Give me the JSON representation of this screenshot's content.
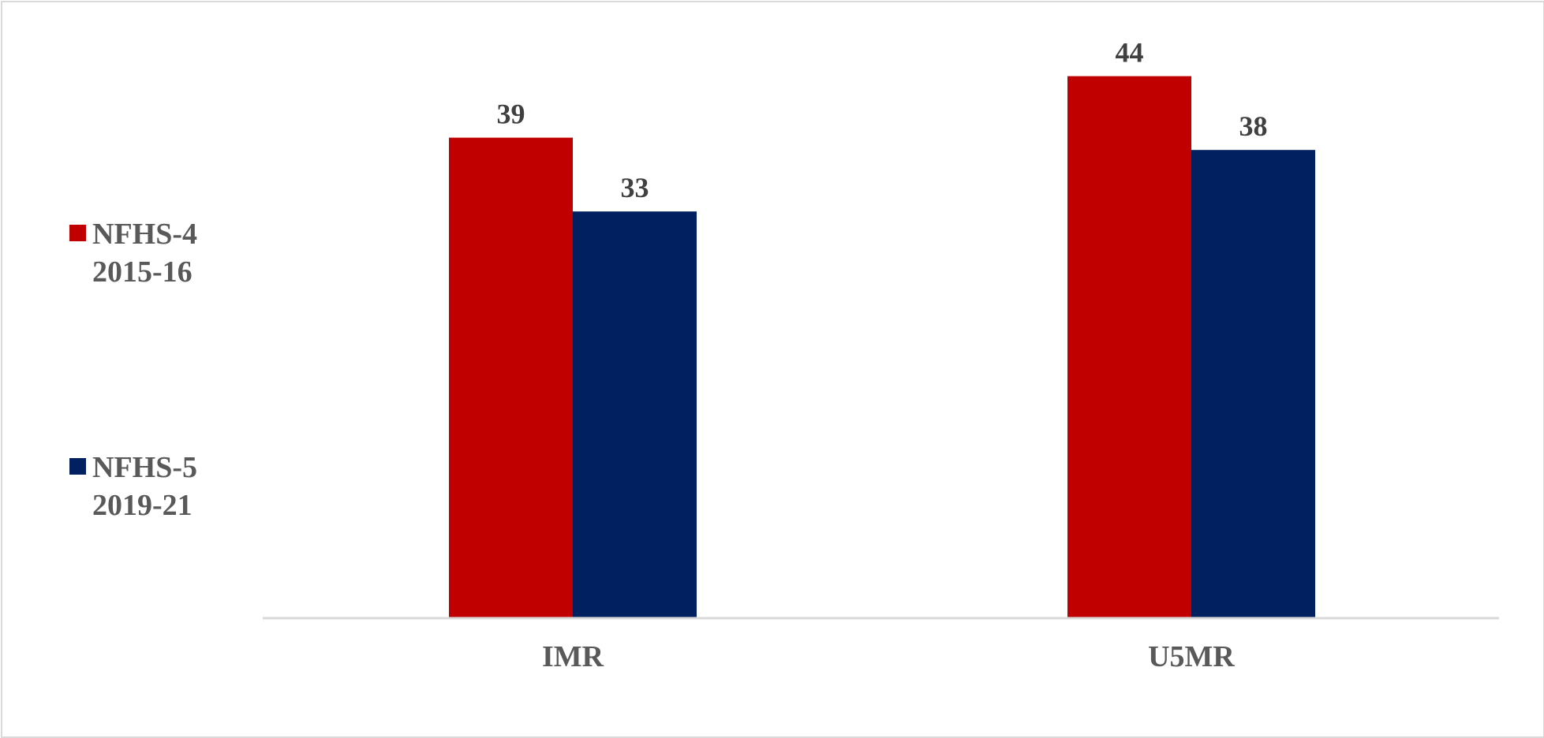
{
  "chart_data": {
    "type": "bar",
    "title": "",
    "xlabel": "",
    "ylabel": "",
    "categories": [
      "IMR",
      "U5MR"
    ],
    "series": [
      {
        "name": "NFHS-4 2015-16",
        "legend_lines": [
          "NFHS-4",
          "2015-16"
        ],
        "color": "#c00000",
        "values": [
          39,
          44
        ]
      },
      {
        "name": "NFHS-5 2019-21",
        "legend_lines": [
          "NFHS-5",
          "2019-21"
        ],
        "color": "#002060",
        "values": [
          33,
          38
        ]
      }
    ],
    "ylim": [
      0,
      44
    ],
    "grid": false,
    "legend_position": "left",
    "data_labels": true,
    "colors": {
      "axis": "#d9d9d9",
      "data_label": "#404040",
      "category_label": "#595959",
      "legend_text": "#595959"
    }
  }
}
